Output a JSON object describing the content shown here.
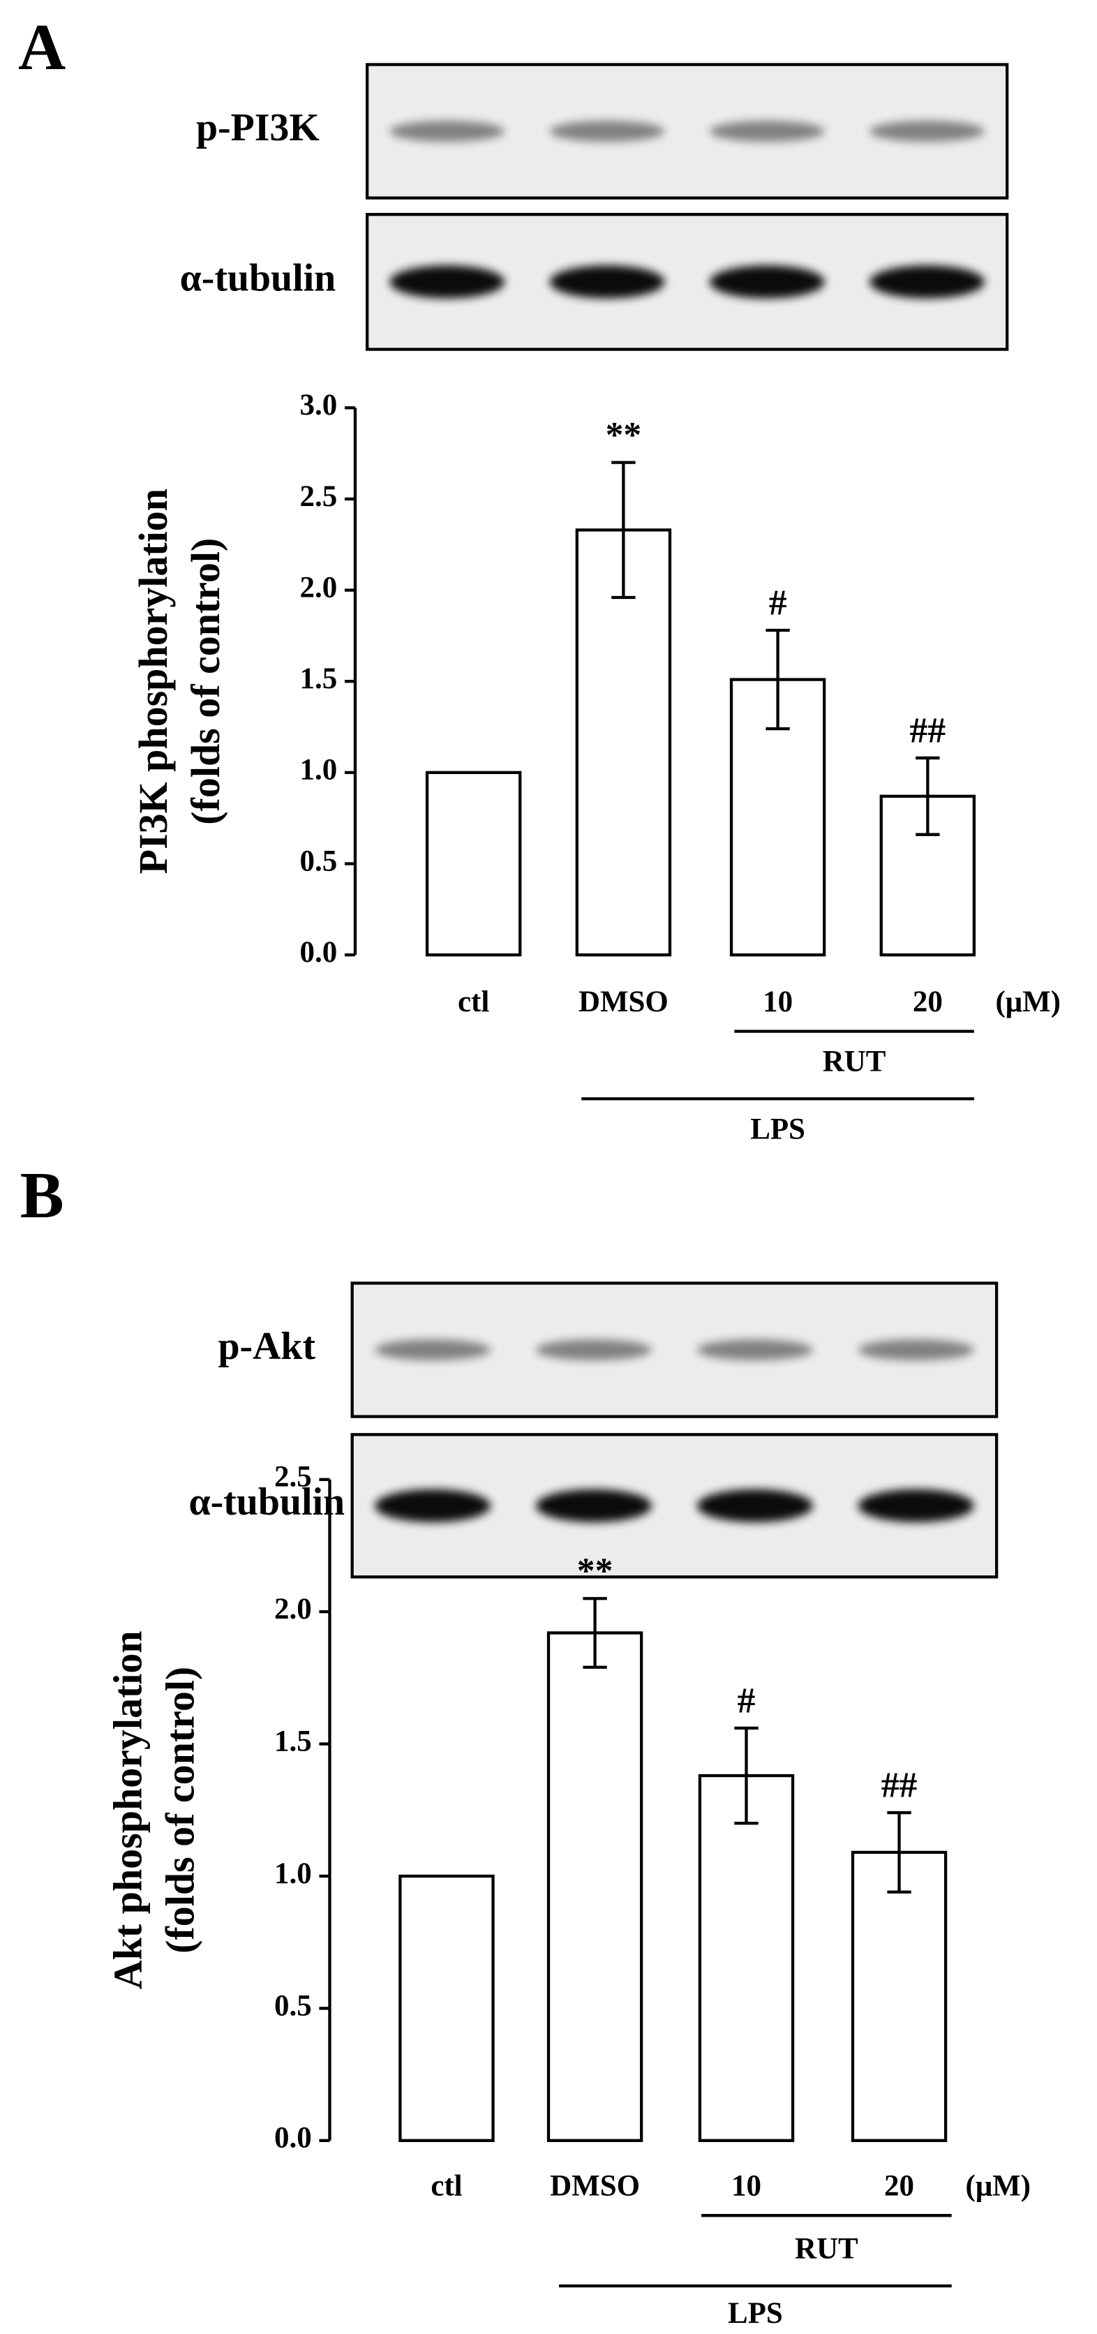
{
  "chart_data": [
    {
      "type": "bar",
      "panel": "A",
      "blots": [
        "p-PI3K",
        "α-tubulin"
      ],
      "y_label": [
        "PI3K phosphorylation",
        "(folds of control)"
      ],
      "categories": [
        "ctl",
        "DMSO",
        "10",
        "20"
      ],
      "unit": "(μM)",
      "values": [
        1.0,
        2.33,
        1.51,
        0.87
      ],
      "errors": [
        0,
        0.37,
        0.27,
        0.21
      ],
      "significance": [
        null,
        "**",
        "#",
        "##"
      ],
      "bracket_labels": [
        "RUT",
        "LPS"
      ],
      "color": "#ffffff",
      "ylim": [
        0,
        3
      ],
      "yticks": [
        {
          "value": 0,
          "label": "0.0"
        },
        {
          "value": 0.5,
          "label": "0.5"
        },
        {
          "value": 1,
          "label": "1.0"
        },
        {
          "value": 1.5,
          "label": "1.5"
        },
        {
          "value": 2,
          "label": "2.0"
        },
        {
          "value": 2.5,
          "label": "2.5"
        },
        {
          "value": 3,
          "label": "3.0"
        }
      ]
    },
    {
      "type": "bar",
      "panel": "B",
      "blots": [
        "p-Akt",
        "α-tubulin"
      ],
      "y_label": [
        "Akt phosphorylation",
        "(folds of control)"
      ],
      "categories": [
        "ctl",
        "DMSO",
        "10",
        "20"
      ],
      "unit": "(μM)",
      "values": [
        1.0,
        1.92,
        1.38,
        1.09
      ],
      "errors": [
        0,
        0.13,
        0.18,
        0.15
      ],
      "significance": [
        null,
        "**",
        "#",
        "##"
      ],
      "bracket_labels": [
        "RUT",
        "LPS"
      ],
      "color": "#ffffff",
      "ylim": [
        0,
        2.5
      ],
      "yticks": [
        {
          "value": 0,
          "label": "0.0"
        },
        {
          "value": 0.5,
          "label": "0.5"
        },
        {
          "value": 1,
          "label": "1.0"
        },
        {
          "value": 1.5,
          "label": "1.5"
        },
        {
          "value": 2,
          "label": "2.0"
        },
        {
          "value": 2.5,
          "label": "2.5"
        }
      ]
    }
  ]
}
